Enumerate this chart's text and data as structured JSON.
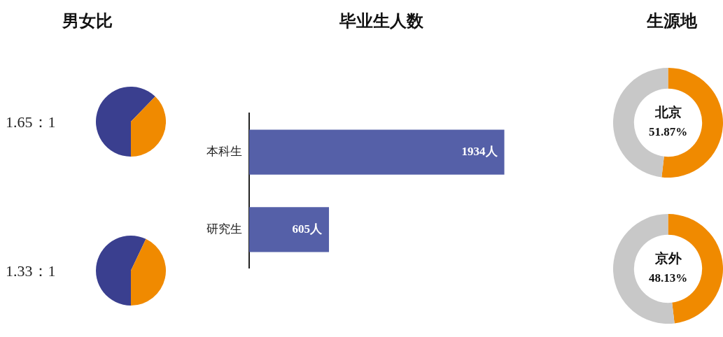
{
  "chart_data": [
    {
      "type": "pie",
      "title": "男女比",
      "categories": [
        null,
        null
      ],
      "values": [
        62.26,
        37.74
      ],
      "colors": [
        "#3a3f8f",
        "#f08a00"
      ],
      "annotations": [
        "1.65：1"
      ],
      "legend": false
    },
    {
      "type": "pie",
      "categories": [
        null,
        null
      ],
      "values": [
        57.08,
        42.92
      ],
      "colors": [
        "#3a3f8f",
        "#f08a00"
      ],
      "annotations": [
        "1.33：1"
      ],
      "legend": false
    },
    {
      "type": "bar",
      "title": "毕业生人数",
      "orientation": "horizontal",
      "categories": [
        "本科生",
        "研究生"
      ],
      "values": [
        1934,
        605
      ],
      "color": "#5560a8",
      "value_labels": [
        "1934人",
        "605人"
      ],
      "grid": false,
      "tick_labels": "y",
      "legend": false
    },
    {
      "type": "donut",
      "title": "生源地",
      "categories": [
        "北京",
        null
      ],
      "values": [
        51.87,
        48.13
      ],
      "colors": [
        "#f08a00",
        "#c8c8c8"
      ],
      "value_labels": [
        "51.87%",
        null
      ],
      "legend": false
    },
    {
      "type": "donut",
      "categories": [
        "京外",
        null
      ],
      "values": [
        48.13,
        51.87
      ],
      "colors": [
        "#f08a00",
        "#c8c8c8"
      ],
      "value_labels": [
        "48.13%",
        null
      ],
      "legend": false
    }
  ]
}
